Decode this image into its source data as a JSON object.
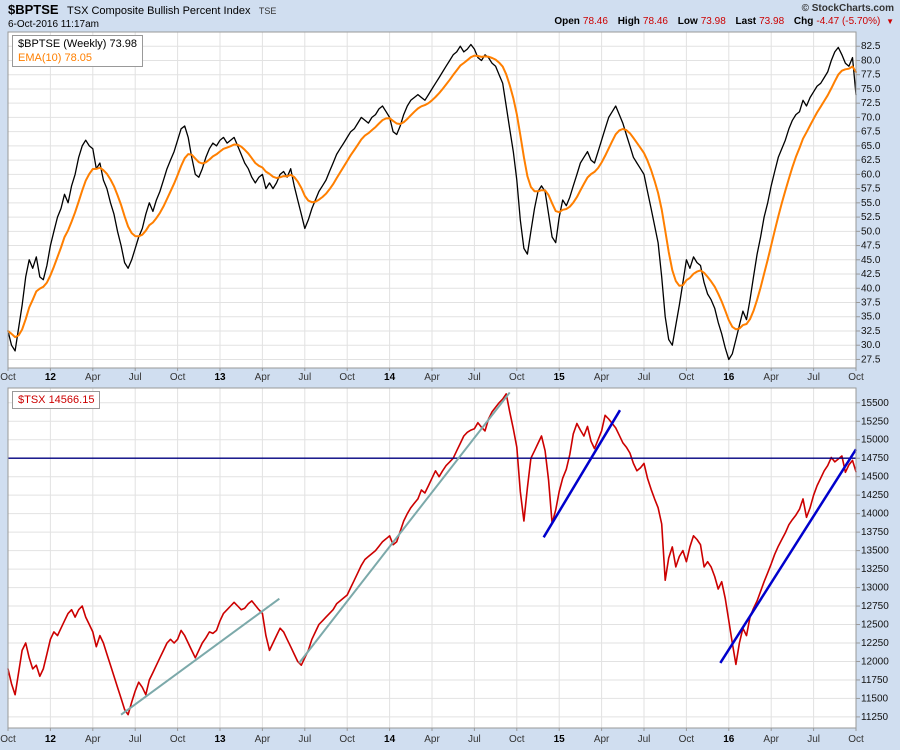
{
  "header": {
    "symbol": "$BPTSE",
    "title": "TSX Composite Bullish Percent Index",
    "exchange": "TSE",
    "datetime": "6-Oct-2016 11:17am",
    "copyright": "© StockCharts.com",
    "quote": {
      "open_label": "Open",
      "open_value": "78.46",
      "high_label": "High",
      "high_value": "78.46",
      "low_label": "Low",
      "low_value": "73.98",
      "last_label": "Last",
      "last_value": "73.98",
      "chg_label": "Chg",
      "chg_value": "-4.47 (-5.70%)",
      "direction_icon": "▼"
    }
  },
  "colors": {
    "page_bg": "#d0def0",
    "plot_bg": "#ffffff",
    "grid": "#e2e2e2",
    "border": "#999999",
    "bptse_line": "#000000",
    "ema_line": "#ff7f00",
    "tsx_line": "#cc0000",
    "hline_navy": "#000080",
    "trend_teal": "#7ca9aa",
    "trend_blue": "#0000cc",
    "quote_down": "#cc0000"
  },
  "x_axis": {
    "x_unit": "months since Oct-2011",
    "ticks": [
      {
        "x": 0,
        "label": "Oct",
        "year": false
      },
      {
        "x": 3,
        "label": "12",
        "year": true
      },
      {
        "x": 6,
        "label": "Apr",
        "year": false
      },
      {
        "x": 9,
        "label": "Jul",
        "year": false
      },
      {
        "x": 12,
        "label": "Oct",
        "year": false
      },
      {
        "x": 15,
        "label": "13",
        "year": true
      },
      {
        "x": 18,
        "label": "Apr",
        "year": false
      },
      {
        "x": 21,
        "label": "Jul",
        "year": false
      },
      {
        "x": 24,
        "label": "Oct",
        "year": false
      },
      {
        "x": 27,
        "label": "14",
        "year": true
      },
      {
        "x": 30,
        "label": "Apr",
        "year": false
      },
      {
        "x": 33,
        "label": "Jul",
        "year": false
      },
      {
        "x": 36,
        "label": "Oct",
        "year": false
      },
      {
        "x": 39,
        "label": "15",
        "year": true
      },
      {
        "x": 42,
        "label": "Apr",
        "year": false
      },
      {
        "x": 45,
        "label": "Jul",
        "year": false
      },
      {
        "x": 48,
        "label": "Oct",
        "year": false
      },
      {
        "x": 51,
        "label": "16",
        "year": true
      },
      {
        "x": 54,
        "label": "Apr",
        "year": false
      },
      {
        "x": 57,
        "label": "Jul",
        "year": false
      },
      {
        "x": 60,
        "label": "Oct",
        "year": false
      }
    ]
  },
  "chart_data": [
    {
      "type": "line",
      "title": "$BPTSE (Weekly)",
      "symbol": "$BPTSE",
      "timeframe": "Weekly",
      "last_value": 73.98,
      "legend": {
        "line1": "$BPTSE (Weekly) 73.98",
        "line2": "EMA(10) 78.05"
      },
      "xlim": [
        0,
        60
      ],
      "ylim": [
        26,
        85
      ],
      "y_ticks": {
        "decimals": 1,
        "values": [
          27.5,
          30,
          32.5,
          35,
          37.5,
          40,
          42.5,
          45,
          47.5,
          50,
          52.5,
          55,
          57.5,
          60,
          62.5,
          65,
          67.5,
          70,
          72.5,
          75,
          77.5,
          80,
          82.5
        ]
      },
      "series": [
        {
          "name": "$BPTSE",
          "color": "#000000",
          "width": 1.3,
          "x_start": 0,
          "x_step": 0.25,
          "values": [
            32.5,
            30,
            29,
            33,
            37,
            42,
            45,
            43.5,
            45.5,
            42,
            41.5,
            44,
            47.5,
            50,
            52.5,
            54,
            56.5,
            55,
            58,
            60,
            63,
            65,
            66,
            65,
            64.5,
            61,
            62,
            59,
            57.5,
            55,
            53,
            50,
            47.5,
            44.5,
            43.5,
            45,
            47,
            49,
            50.5,
            53,
            55,
            53.5,
            55.5,
            57,
            59,
            61,
            62.5,
            64,
            66,
            68,
            68.5,
            66.5,
            63,
            60,
            59.5,
            61,
            63,
            64.5,
            65.5,
            65,
            66,
            66.5,
            65.5,
            66,
            66.5,
            65,
            63.5,
            62,
            61,
            59.5,
            58.5,
            59.5,
            60,
            57.5,
            58.5,
            57.5,
            58.5,
            60,
            60.5,
            59.5,
            61,
            58,
            55.5,
            53,
            50.5,
            52,
            54,
            55.5,
            57,
            58,
            59,
            60.5,
            62,
            63.5,
            64.5,
            65.5,
            66.5,
            67.5,
            68,
            69,
            70,
            69.5,
            69,
            70,
            70.5,
            71.5,
            72,
            71,
            70,
            67.5,
            67,
            68.5,
            70.5,
            72,
            73,
            73.5,
            74,
            73.5,
            73,
            74,
            75,
            76,
            77,
            78,
            79,
            80,
            81,
            81.5,
            82.5,
            81.5,
            82,
            82.8,
            82,
            80.5,
            80,
            81,
            80.5,
            79.5,
            79,
            77.5,
            76,
            72,
            68,
            64,
            59,
            52,
            47,
            46,
            50,
            54,
            57,
            58,
            57,
            53,
            49,
            48,
            52.5,
            55.5,
            54.5,
            56,
            58,
            60,
            62,
            63,
            64,
            62.5,
            62,
            64,
            66,
            68,
            70,
            71,
            72,
            70.5,
            69,
            67,
            65,
            63,
            62,
            61,
            60,
            57,
            54,
            51,
            48,
            42,
            35,
            31,
            30,
            33.5,
            37,
            41,
            45,
            43.5,
            45.5,
            44.5,
            44,
            41,
            39,
            38,
            36.5,
            34,
            32,
            29.5,
            27.5,
            28.5,
            31,
            33.5,
            36,
            34.5,
            38,
            42,
            46,
            49,
            52.5,
            55,
            58,
            60.5,
            63,
            64.5,
            66,
            68,
            69.5,
            70.5,
            71,
            73,
            72,
            73.5,
            74.5,
            75.5,
            76,
            77,
            78,
            80,
            81.5,
            82.3,
            81,
            79.5,
            79,
            80.5,
            73.98
          ]
        },
        {
          "name": "EMA(10)",
          "color": "#ff7f00",
          "width": 2,
          "derived": "ema",
          "period": 10,
          "value": 78.05
        }
      ]
    },
    {
      "type": "line",
      "title": "$TSX",
      "symbol": "$TSX",
      "last_value": 14566.15,
      "legend": {
        "line1": "$TSX 14566.15"
      },
      "xlim": [
        0,
        60
      ],
      "ylim": [
        11100,
        15700
      ],
      "y_ticks": {
        "decimals": 0,
        "values": [
          11250,
          11500,
          11750,
          12000,
          12250,
          12500,
          12750,
          13000,
          13250,
          13500,
          13750,
          14000,
          14250,
          14500,
          14750,
          15000,
          15250,
          15500
        ]
      },
      "series": [
        {
          "name": "$TSX",
          "color": "#cc0000",
          "width": 1.6,
          "x_start": 0,
          "x_step": 0.25,
          "values": [
            11900,
            11700,
            11550,
            11850,
            12150,
            12250,
            12050,
            11900,
            11950,
            11800,
            11900,
            12100,
            12300,
            12400,
            12350,
            12450,
            12550,
            12650,
            12700,
            12600,
            12700,
            12750,
            12600,
            12500,
            12400,
            12200,
            12350,
            12250,
            12100,
            11950,
            11800,
            11650,
            11500,
            11350,
            11280,
            11450,
            11600,
            11720,
            11650,
            11550,
            11750,
            11850,
            11950,
            12050,
            12150,
            12250,
            12300,
            12250,
            12300,
            12420,
            12350,
            12250,
            12150,
            12050,
            12150,
            12250,
            12320,
            12400,
            12380,
            12420,
            12550,
            12650,
            12700,
            12750,
            12800,
            12750,
            12700,
            12720,
            12780,
            12820,
            12760,
            12700,
            12650,
            12350,
            12150,
            12250,
            12350,
            12450,
            12400,
            12300,
            12200,
            12100,
            12000,
            11950,
            12050,
            12150,
            12300,
            12400,
            12500,
            12550,
            12600,
            12650,
            12700,
            12780,
            12820,
            12860,
            12900,
            13000,
            13100,
            13200,
            13300,
            13380,
            13420,
            13460,
            13500,
            13560,
            13620,
            13660,
            13700,
            13580,
            13620,
            13760,
            13900,
            14000,
            14080,
            14140,
            14200,
            14320,
            14280,
            14380,
            14480,
            14580,
            14500,
            14580,
            14650,
            14700,
            14750,
            14850,
            14950,
            15050,
            15100,
            15130,
            15150,
            15230,
            15170,
            15120,
            15280,
            15380,
            15440,
            15500,
            15550,
            15620,
            15380,
            15150,
            14900,
            14300,
            13900,
            14350,
            14750,
            14850,
            14950,
            15050,
            14850,
            14450,
            13870,
            14050,
            14300,
            14480,
            14600,
            14800,
            15080,
            15220,
            15130,
            15050,
            15180,
            14980,
            14880,
            15000,
            15120,
            15330,
            15280,
            15220,
            15160,
            15060,
            14960,
            14900,
            14820,
            14680,
            14580,
            14620,
            14680,
            14480,
            14330,
            14200,
            14080,
            13860,
            13100,
            13400,
            13550,
            13280,
            13420,
            13500,
            13350,
            13550,
            13700,
            13650,
            13580,
            13280,
            13350,
            13280,
            13150,
            12980,
            13080,
            12850,
            12550,
            12250,
            11960,
            12250,
            12450,
            12350,
            12600,
            12720,
            12820,
            12950,
            13080,
            13200,
            13320,
            13450,
            13560,
            13650,
            13740,
            13850,
            13920,
            13980,
            14060,
            14200,
            13950,
            14080,
            14250,
            14380,
            14480,
            14580,
            14650,
            14760,
            14700,
            14740,
            14780,
            14560,
            14660,
            14720,
            14566.15
          ]
        }
      ],
      "annotations": [
        {
          "type": "hline",
          "y": 14750,
          "color": "#000080",
          "width": 1.4
        },
        {
          "type": "segment",
          "x1": 8.0,
          "y1": 11280,
          "x2": 19.2,
          "y2": 12850,
          "color": "#7ca9aa",
          "width": 2
        },
        {
          "type": "segment",
          "x1": 20.6,
          "y1": 11980,
          "x2": 35.5,
          "y2": 15640,
          "color": "#7ca9aa",
          "width": 2
        },
        {
          "type": "segment",
          "x1": 37.9,
          "y1": 13680,
          "x2": 43.3,
          "y2": 15400,
          "color": "#0000cc",
          "width": 2.5
        },
        {
          "type": "segment",
          "x1": 50.4,
          "y1": 11980,
          "x2": 60,
          "y2": 14870,
          "color": "#0000cc",
          "width": 2.5
        }
      ]
    }
  ]
}
